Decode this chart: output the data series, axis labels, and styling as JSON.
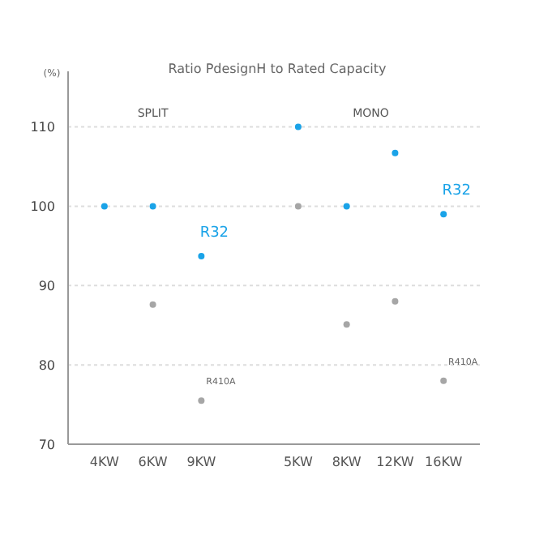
{
  "chart_data": {
    "type": "scatter",
    "title": "Ratio PdesignH to Rated Capacity",
    "ylabel": "(%)",
    "categories": [
      "4KW",
      "6KW",
      "9KW",
      null,
      "5KW",
      "8KW",
      "12KW",
      "16KW"
    ],
    "series": [
      {
        "name": "R32",
        "color": "#1aa3e8",
        "values": [
          100,
          100,
          93.7,
          null,
          110,
          100,
          106.7,
          99
        ]
      },
      {
        "name": "R410A",
        "color": "#a6a6a6",
        "values": [
          null,
          87.6,
          75.5,
          null,
          100,
          85.1,
          88,
          78
        ]
      }
    ],
    "annotations": [
      "SPLIT",
      "MONO"
    ],
    "ylim": [
      70,
      117
    ],
    "yticks": [
      70,
      80,
      90,
      100,
      110
    ],
    "grid": "y",
    "legend": false,
    "marker": "circle"
  }
}
